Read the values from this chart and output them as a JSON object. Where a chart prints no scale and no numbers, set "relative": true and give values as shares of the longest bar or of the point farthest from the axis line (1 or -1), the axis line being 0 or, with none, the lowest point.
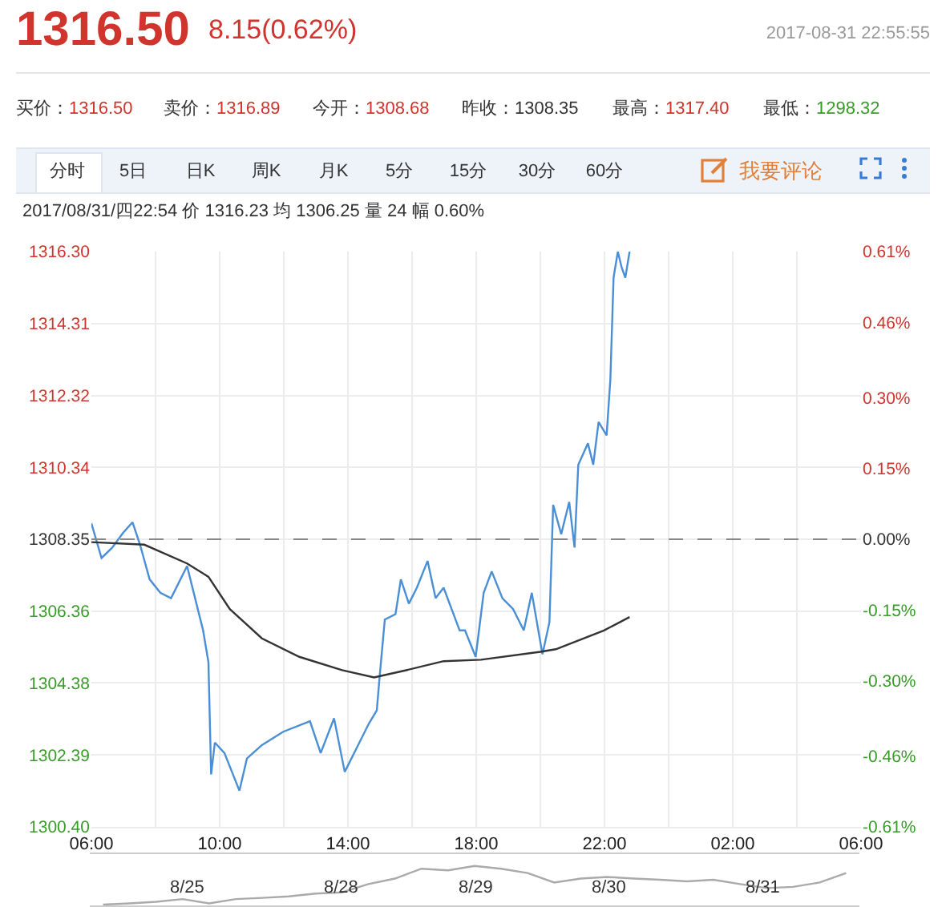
{
  "chart_data": [
    {
      "type": "line",
      "title": "1316.50",
      "subtitle": "8.15(0.62%)",
      "annotations": [
        "2017-08-31 22:55:55",
        "买价：1316.50",
        "卖价：1316.89",
        "今开：1308.68",
        "昨收：1308.35",
        "最高：1317.40",
        "最低：1298.32",
        "分时",
        "5日",
        "日K",
        "周K",
        "月K",
        "5分",
        "15分",
        "30分",
        "60分",
        "我要评论",
        "2017/08/31/四22:54  价 1316.23  均 1306.25  量 24  幅 0.60%"
      ],
      "series": [
        {
          "color": "#4a8fd6",
          "x": [
            "2017-08-31T06:00",
            "2017-08-31T06:19",
            "2017-08-31T06:39",
            "2017-08-31T06:59",
            "2017-08-31T07:17",
            "2017-08-31T07:31",
            "2017-08-31T07:49",
            "2017-08-31T08:09",
            "2017-08-31T08:29",
            "2017-08-31T08:59",
            "2017-08-31T09:14",
            "2017-08-31T09:29",
            "2017-08-31T09:39",
            "2017-08-31T09:44",
            "2017-08-31T09:51",
            "2017-08-31T10:09",
            "2017-08-31T10:37",
            "2017-08-31T10:51",
            "2017-08-31T11:19",
            "2017-08-31T11:59",
            "2017-08-31T12:49",
            "2017-08-31T13:09",
            "2017-08-31T13:34",
            "2017-08-31T13:54",
            "2017-08-31T14:19",
            "2017-08-31T14:39",
            "2017-08-31T14:54",
            "2017-08-31T14:59",
            "2017-08-31T15:09",
            "2017-08-31T15:29",
            "2017-08-31T15:39",
            "2017-08-31T15:54",
            "2017-08-31T16:09",
            "2017-08-31T16:29",
            "2017-08-31T16:44",
            "2017-08-31T16:59",
            "2017-08-31T17:29",
            "2017-08-31T17:39",
            "2017-08-31T17:59",
            "2017-08-31T18:14",
            "2017-08-31T18:29",
            "2017-08-31T18:49",
            "2017-08-31T19:09",
            "2017-08-31T19:29",
            "2017-08-31T19:44",
            "2017-08-31T20:04",
            "2017-08-31T20:17",
            "2017-08-31T20:24",
            "2017-08-31T20:39",
            "2017-08-31T20:54",
            "2017-08-31T21:04",
            "2017-08-31T21:11",
            "2017-08-31T21:29",
            "2017-08-31T21:39",
            "2017-08-31T21:49",
            "2017-08-31T22:04",
            "2017-08-31T22:11",
            "2017-08-31T22:17",
            "2017-08-31T22:25",
            "2017-08-31T22:32",
            "2017-08-31T22:39",
            "2017-08-31T22:47"
          ],
          "values": [
            1308.79,
            1307.83,
            1308.12,
            1308.52,
            1308.82,
            1308.2,
            1307.24,
            1306.87,
            1306.72,
            1307.61,
            1306.72,
            1305.83,
            1304.95,
            1301.85,
            1302.73,
            1302.44,
            1301.4,
            1302.29,
            1302.66,
            1303.03,
            1303.32,
            1302.44,
            1303.4,
            1301.92,
            1302.66,
            1303.25,
            1303.62,
            1304.5,
            1306.13,
            1306.28,
            1307.24,
            1306.57,
            1307.01,
            1307.75,
            1306.72,
            1307.01,
            1305.83,
            1305.83,
            1305.1,
            1306.87,
            1307.46,
            1306.72,
            1306.42,
            1305.83,
            1306.87,
            1305.17,
            1306.06,
            1309.3,
            1308.49,
            1309.38,
            1308.12,
            1310.41,
            1311.0,
            1310.41,
            1311.59,
            1311.22,
            1312.77,
            1315.58,
            1316.3,
            1315.87,
            1315.58,
            1316.3
          ]
        },
        {
          "color": "#333333",
          "x": [
            "2017-08-31T06:00",
            "2017-08-31T07:39",
            "2017-08-31T08:59",
            "2017-08-31T09:39",
            "2017-08-31T10:19",
            "2017-08-31T11:19",
            "2017-08-31T12:29",
            "2017-08-31T13:49",
            "2017-08-31T14:49",
            "2017-08-31T15:49",
            "2017-08-31T16:59",
            "2017-08-31T18:09",
            "2017-08-31T20:00",
            "2017-08-31T20:29",
            "2017-08-31T21:59",
            "2017-08-31T22:47"
          ],
          "values": [
            1308.27,
            1308.2,
            1307.68,
            1307.31,
            1306.42,
            1305.61,
            1305.1,
            1304.73,
            1304.53,
            1304.73,
            1304.98,
            1305.02,
            1305.24,
            1305.31,
            1305.83,
            1306.2
          ]
        }
      ],
      "xlim": [
        "2017-08-31T06:00",
        "2017-09-01T06:00"
      ],
      "xticks": [
        {
          "value": "2017-08-31T06:00",
          "label": "06:00"
        },
        {
          "value": "2017-08-31T08:00",
          "label": null
        },
        {
          "value": "2017-08-31T10:00",
          "label": "10:00"
        },
        {
          "value": "2017-08-31T12:00",
          "label": null
        },
        {
          "value": "2017-08-31T14:00",
          "label": "14:00"
        },
        {
          "value": "2017-08-31T16:00",
          "label": null
        },
        {
          "value": "2017-08-31T18:00",
          "label": "18:00"
        },
        {
          "value": "2017-08-31T20:00",
          "label": null
        },
        {
          "value": "2017-08-31T22:00",
          "label": "22:00"
        },
        {
          "value": "2017-09-01T00:00",
          "label": null
        },
        {
          "value": "2017-09-01T02:00",
          "label": "02:00"
        },
        {
          "value": "2017-09-01T04:00",
          "label": null
        },
        {
          "value": "2017-09-01T06:00",
          "label": "06:00"
        }
      ],
      "ylim": [
        1300.4,
        1316.3
      ],
      "yticks": [
        {
          "value": 1300.4,
          "label": "1300.40"
        },
        {
          "value": 1302.39,
          "label": "1302.39"
        },
        {
          "value": 1304.38,
          "label": "1304.38"
        },
        {
          "value": 1306.36,
          "label": "1306.36"
        },
        {
          "value": 1308.35,
          "label": "1308.35"
        },
        {
          "value": 1310.34,
          "label": "1310.34"
        },
        {
          "value": 1312.32,
          "label": "1312.32"
        },
        {
          "value": 1314.31,
          "label": "1314.31"
        },
        {
          "value": 1316.3,
          "label": "1316.30"
        }
      ],
      "y2lim": [
        -0.61,
        0.61
      ],
      "y2ticks": [
        {
          "value": -0.61,
          "label": "-0.61%"
        },
        {
          "value": -0.46,
          "label": "-0.46%"
        },
        {
          "value": -0.3,
          "label": "-0.30%"
        },
        {
          "value": -0.15,
          "label": "-0.15%"
        },
        {
          "value": 0,
          "label": "0.00%"
        },
        {
          "value": 0.15,
          "label": "0.15%"
        },
        {
          "value": 0.3,
          "label": "0.30%"
        },
        {
          "value": 0.46,
          "label": "0.46%"
        },
        {
          "value": 0.61,
          "label": "0.61%"
        }
      ],
      "grid": true,
      "ref_lines": [
        {
          "axis": "y",
          "value": 1308.35,
          "color": "#888888",
          "line_style": "dashed"
        }
      ]
    },
    {
      "type": "line",
      "relative": true,
      "categories": [
        null,
        null,
        null,
        null,
        null,
        null,
        null,
        null,
        null,
        null,
        null,
        null,
        null,
        null,
        null,
        null,
        null,
        null,
        null,
        null,
        null,
        null,
        null,
        null,
        null,
        null,
        null,
        null,
        null
      ],
      "series": [
        {
          "color": "#aaaaaa",
          "values": [
            0.02,
            0.05,
            0.09,
            0.16,
            0.05,
            0.16,
            0.19,
            0.23,
            0.3,
            0.33,
            0.54,
            0.68,
            0.93,
            0.89,
            1,
            0.93,
            0.82,
            0.58,
            0.68,
            0.72,
            0.68,
            0.65,
            0.61,
            0.65,
            0.54,
            0.44,
            0.47,
            0.58,
            0.82
          ]
        }
      ],
      "annotations": [
        "8/25",
        "8/28",
        "8/29",
        "8/30",
        "8/31"
      ]
    }
  ]
}
